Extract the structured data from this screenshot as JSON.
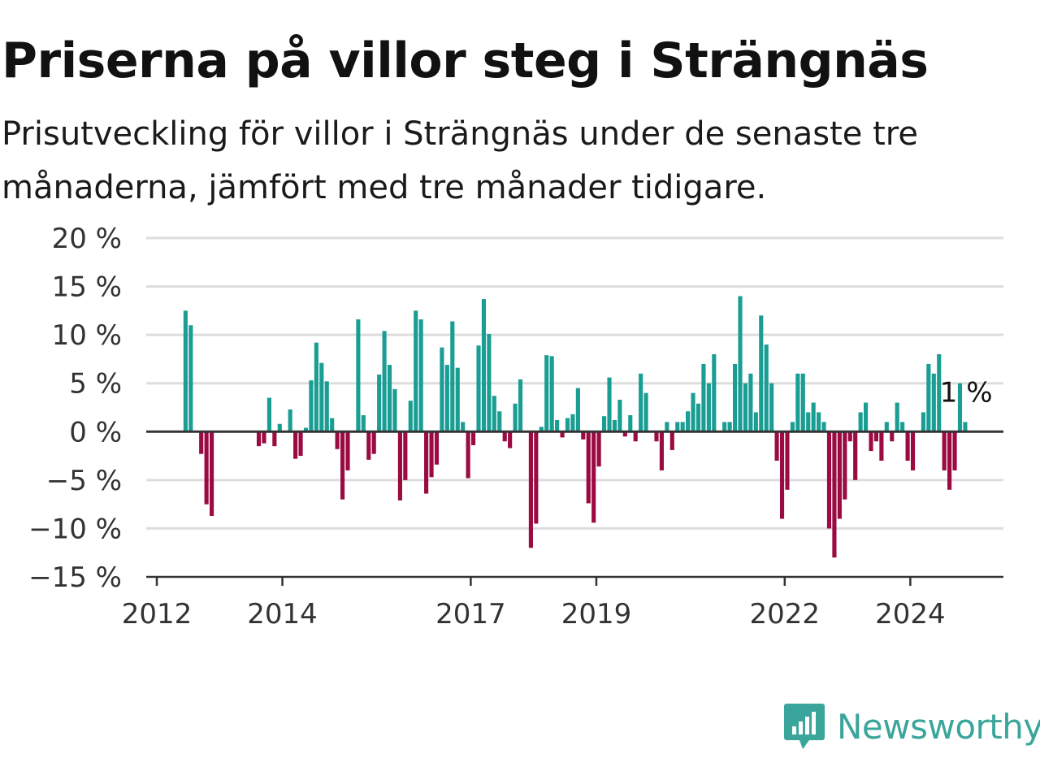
{
  "title": "Priserna på villor steg i Strängnäs",
  "subtitle": "Prisutveckling för villor i Strängnäs under de senaste tre månaderna, jämfört med tre månader tidigare.",
  "brand": "Newsworthy",
  "colors": {
    "positive": "#1a9e94",
    "negative": "#9b0a41",
    "grid": "#dddddd",
    "zero": "#333333",
    "brand": "#3aa59a"
  },
  "chart_data": {
    "type": "bar",
    "title": "Priserna på villor steg i Strängnäs",
    "subtitle": "Prisutveckling för villor i Strängnäs under de senaste tre månaderna, jämfört med tre månader tidigare.",
    "xlabel": "",
    "ylabel": "",
    "ylim": [
      -15,
      20
    ],
    "yticks": [
      -15,
      -10,
      -5,
      0,
      5,
      10,
      15,
      20
    ],
    "ytick_labels": [
      "−15 %",
      "−10 %",
      "−5 %",
      "0 %",
      "5 %",
      "10 %",
      "15 %",
      "20 %"
    ],
    "xticks": [
      2012,
      2014,
      2017,
      2019,
      2022,
      2024
    ],
    "xtick_labels": [
      "2012",
      "2014",
      "2017",
      "2019",
      "2022",
      "2024"
    ],
    "x_start": "2012-01",
    "last_value_label": "1 %",
    "grid": true,
    "values": [
      null,
      null,
      null,
      null,
      null,
      12.5,
      11.0,
      null,
      -2.3,
      -7.5,
      -8.7,
      null,
      null,
      null,
      null,
      null,
      null,
      null,
      null,
      -1.5,
      -1.2,
      3.5,
      -1.5,
      0.8,
      null,
      2.3,
      -2.8,
      -2.5,
      0.4,
      5.3,
      9.2,
      7.1,
      5.2,
      1.4,
      -1.8,
      -7.0,
      -4.0,
      null,
      11.6,
      1.7,
      -2.9,
      -2.3,
      5.9,
      10.4,
      6.9,
      4.4,
      -7.1,
      -5.0,
      3.2,
      12.5,
      11.6,
      -6.4,
      -4.7,
      -3.4,
      8.7,
      6.9,
      11.4,
      6.6,
      1.0,
      -4.8,
      -1.4,
      8.9,
      13.7,
      10.1,
      3.7,
      2.1,
      -1.0,
      -1.7,
      2.9,
      5.4,
      null,
      -12.0,
      -9.5,
      0.5,
      7.9,
      7.8,
      1.2,
      -0.6,
      1.4,
      1.8,
      4.5,
      -0.8,
      -7.4,
      -9.4,
      -3.6,
      1.6,
      5.6,
      1.2,
      3.3,
      -0.5,
      1.7,
      -1.0,
      6.0,
      4.0,
      null,
      -1.0,
      -4.0,
      1.0,
      -1.9,
      1.0,
      1.0,
      2.1,
      4.0,
      2.9,
      7.0,
      5.0,
      8.0,
      null,
      1.0,
      1.0,
      7.0,
      14.0,
      5.0,
      6.0,
      2.0,
      12.0,
      9.0,
      5.0,
      -3.0,
      -9.0,
      -6.0,
      1.0,
      6.0,
      6.0,
      2.0,
      3.0,
      2.0,
      1.0,
      -10.0,
      -13.0,
      -9.0,
      -7.0,
      -1.0,
      -5.0,
      2.0,
      3.0,
      -2.0,
      -1.0,
      -3.0,
      1.0,
      -1.0,
      3.0,
      1.0,
      -3.0,
      -4.0,
      null,
      2.0,
      7.0,
      6.0,
      8.0,
      -4.0,
      -6.0,
      -4.0,
      5.0,
      1.0
    ]
  }
}
